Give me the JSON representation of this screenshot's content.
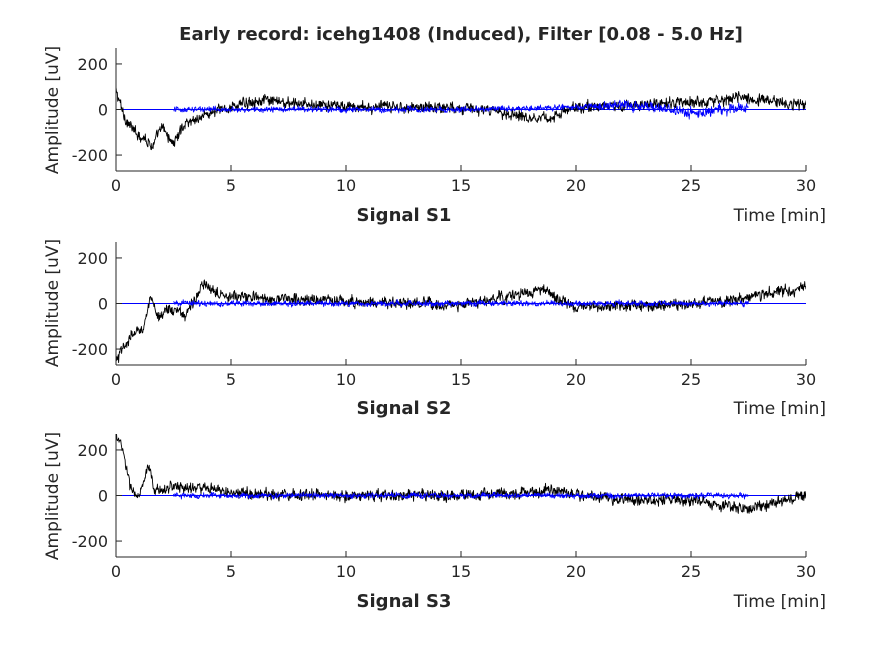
{
  "figure_title": "Early record: icehg1408 (Induced), Filter [0.08 - 5.0 Hz]",
  "colors": {
    "raw_signal": "#000000",
    "overlay_signal": "#0000ff",
    "axes": "#262626"
  },
  "chart_data": [
    {
      "type": "line",
      "subplot_label": "Signal S1",
      "xlabel": "Time [min]",
      "ylabel": "Amplitude [uV]",
      "xlim": [
        0,
        30
      ],
      "ylim": [
        -270,
        270
      ],
      "xticks": [
        0,
        5,
        10,
        15,
        20,
        25,
        30
      ],
      "yticks": [
        -200,
        0,
        200
      ],
      "grid": false,
      "series": [
        {
          "color": "#000000",
          "x_range": [
            0,
            30
          ],
          "approx_envelope": [
            [
              0,
              80
            ],
            [
              0.4,
              -40
            ],
            [
              0.8,
              -100
            ],
            [
              1.2,
              -120
            ],
            [
              1.6,
              -160
            ],
            [
              2,
              -80
            ],
            [
              2.5,
              -150
            ],
            [
              3,
              -60
            ],
            [
              4,
              -20
            ],
            [
              6,
              40
            ],
            [
              10,
              10
            ],
            [
              15,
              10
            ],
            [
              18.8,
              -40
            ],
            [
              20,
              10
            ],
            [
              25,
              30
            ],
            [
              27,
              50
            ],
            [
              30,
              20
            ]
          ]
        },
        {
          "color": "#0000ff",
          "x_range": [
            2.5,
            27.5
          ],
          "approx_envelope": [
            [
              2.5,
              0
            ],
            [
              5,
              0
            ],
            [
              10,
              0
            ],
            [
              15,
              0
            ],
            [
              20,
              10
            ],
            [
              22,
              20
            ],
            [
              25,
              -15
            ],
            [
              27.5,
              10
            ]
          ]
        }
      ]
    },
    {
      "type": "line",
      "subplot_label": "Signal S2",
      "xlabel": "Time [min]",
      "ylabel": "Amplitude [uV]",
      "xlim": [
        0,
        30
      ],
      "ylim": [
        -270,
        270
      ],
      "xticks": [
        0,
        5,
        10,
        15,
        20,
        25,
        30
      ],
      "yticks": [
        -200,
        0,
        200
      ],
      "grid": false,
      "series": [
        {
          "color": "#000000",
          "x_range": [
            0,
            30
          ],
          "approx_envelope": [
            [
              0,
              -260
            ],
            [
              0.3,
              -200
            ],
            [
              0.7,
              -140
            ],
            [
              1.2,
              -100
            ],
            [
              1.5,
              20
            ],
            [
              1.8,
              -60
            ],
            [
              2.2,
              -20
            ],
            [
              3,
              -50
            ],
            [
              3.8,
              80
            ],
            [
              5,
              30
            ],
            [
              10,
              10
            ],
            [
              15,
              -10
            ],
            [
              18.5,
              60
            ],
            [
              20,
              -20
            ],
            [
              25,
              0
            ],
            [
              27,
              20
            ],
            [
              30,
              70
            ]
          ]
        },
        {
          "color": "#0000ff",
          "x_range": [
            2.5,
            27.5
          ],
          "approx_envelope": [
            [
              2.5,
              0
            ],
            [
              10,
              0
            ],
            [
              15,
              0
            ],
            [
              20,
              0
            ],
            [
              27.5,
              0
            ]
          ]
        }
      ]
    },
    {
      "type": "line",
      "subplot_label": "Signal S3",
      "xlabel": "Time [min]",
      "ylabel": "Amplitude [uV]",
      "xlim": [
        0,
        30
      ],
      "ylim": [
        -270,
        270
      ],
      "xticks": [
        0,
        5,
        10,
        15,
        20,
        25,
        30
      ],
      "yticks": [
        -200,
        0,
        200
      ],
      "grid": false,
      "series": [
        {
          "color": "#000000",
          "x_range": [
            0,
            30
          ],
          "approx_envelope": [
            [
              0,
              270
            ],
            [
              0.3,
              200
            ],
            [
              0.6,
              40
            ],
            [
              1,
              -10
            ],
            [
              1.4,
              120
            ],
            [
              1.7,
              20
            ],
            [
              2.5,
              40
            ],
            [
              4,
              30
            ],
            [
              5,
              10
            ],
            [
              10,
              0
            ],
            [
              15,
              0
            ],
            [
              19,
              20
            ],
            [
              22,
              -20
            ],
            [
              25,
              -20
            ],
            [
              27.5,
              -60
            ],
            [
              30,
              0
            ]
          ]
        },
        {
          "color": "#0000ff",
          "x_range": [
            2.5,
            27.5
          ],
          "approx_envelope": [
            [
              2.5,
              0
            ],
            [
              6.6,
              0
            ],
            [
              10,
              0
            ],
            [
              15,
              0
            ],
            [
              19,
              0
            ],
            [
              27.5,
              0
            ]
          ]
        }
      ]
    }
  ]
}
